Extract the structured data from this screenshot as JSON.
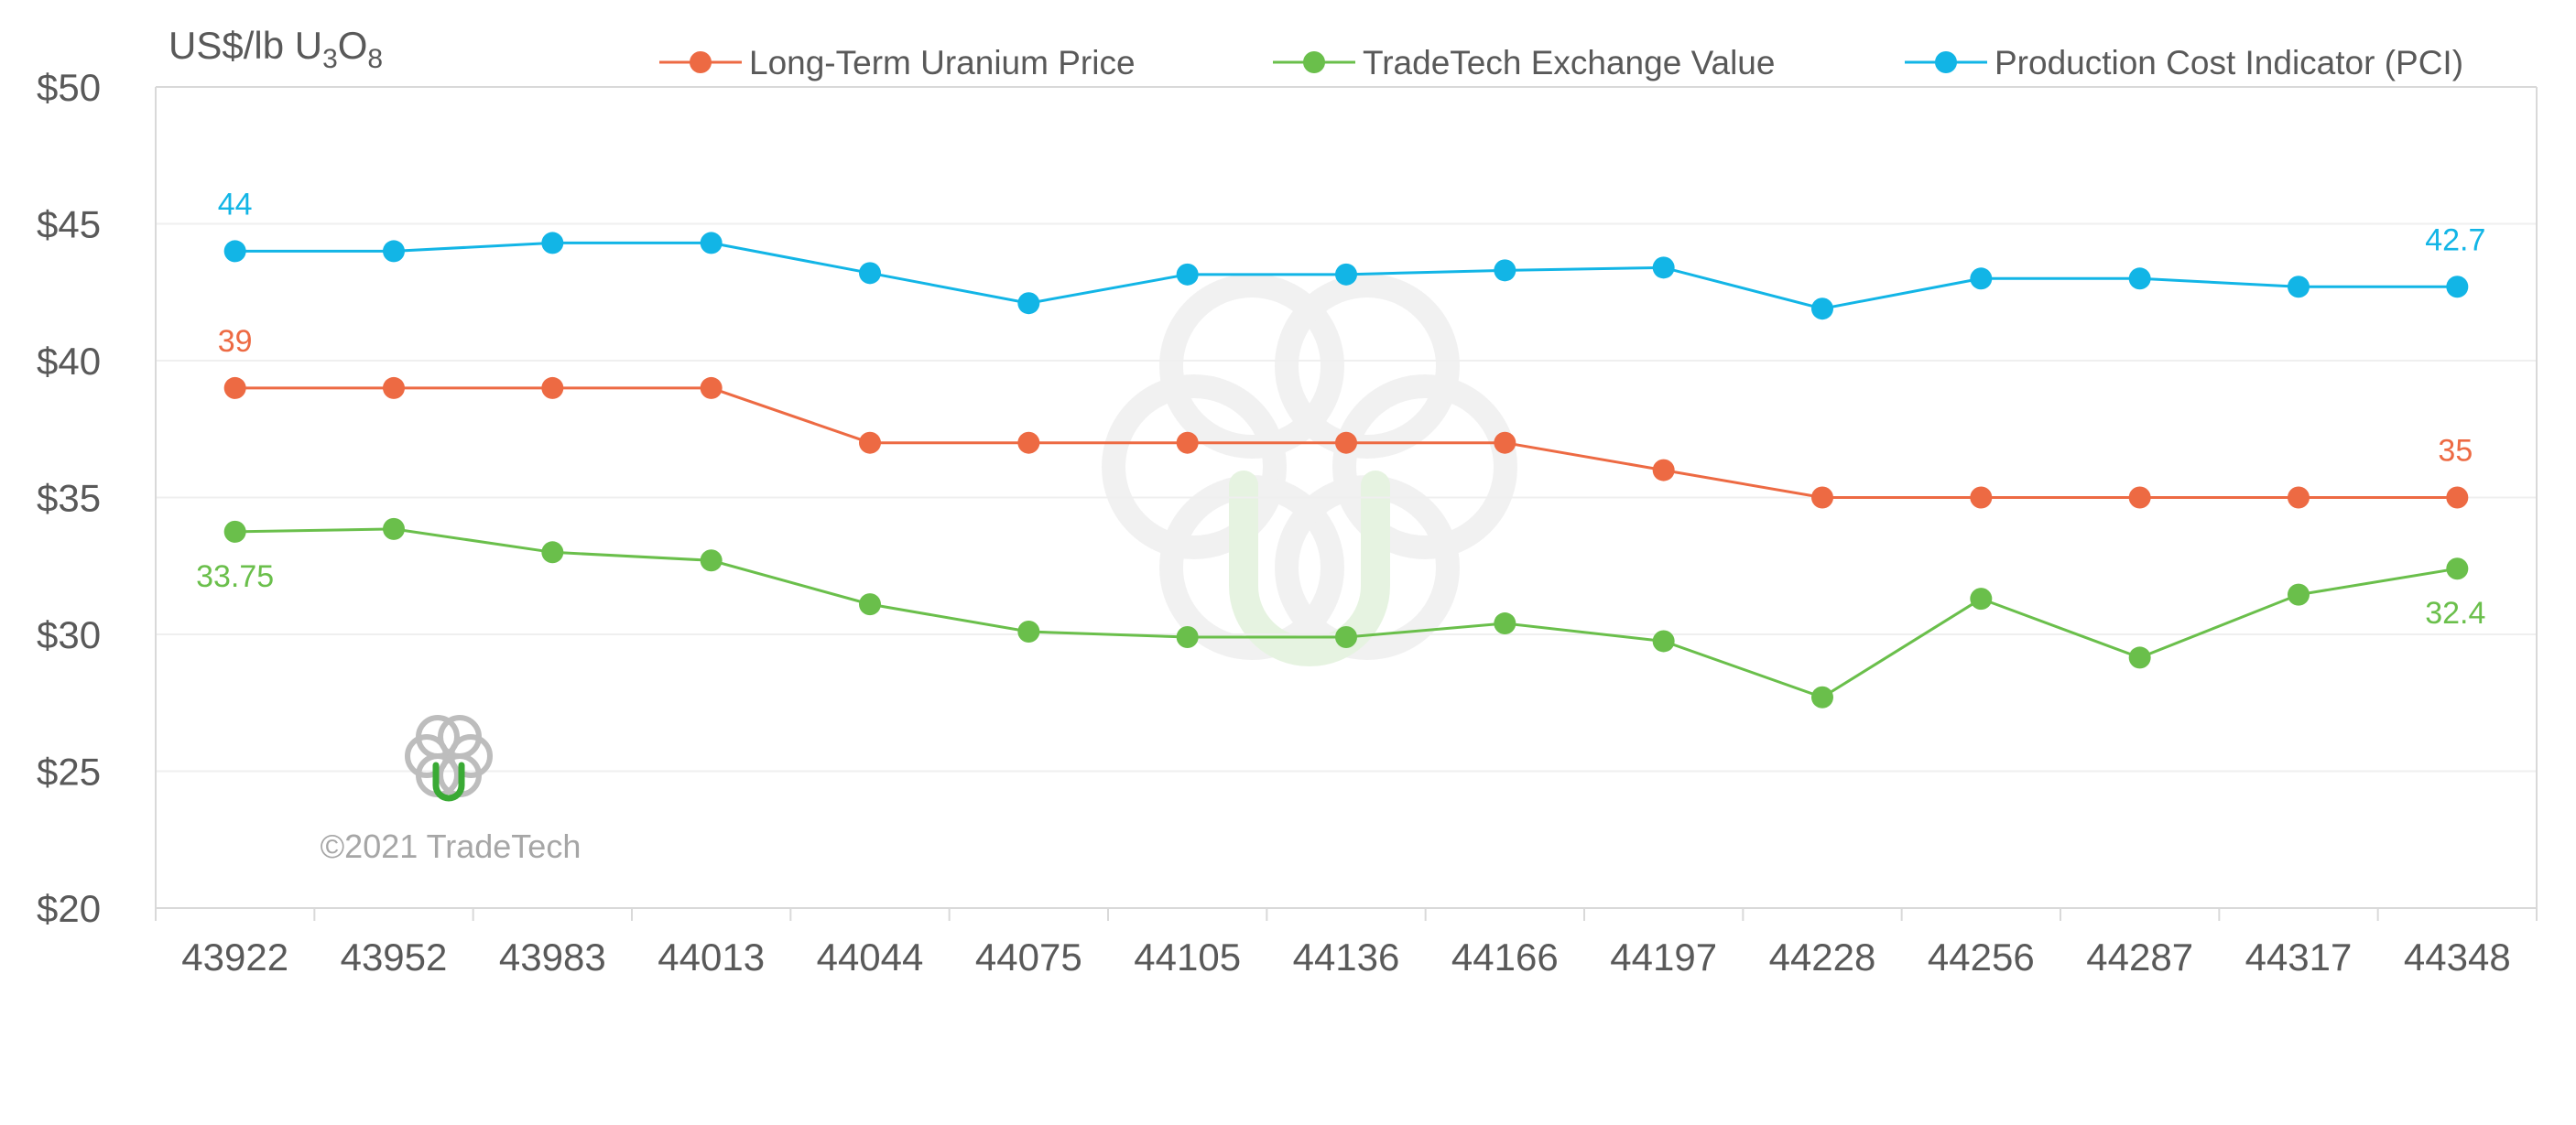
{
  "chart_data": {
    "type": "line",
    "unit_label": {
      "prefix": "US$/lb U",
      "sub1": "3",
      "mid": "O",
      "sub2": "8"
    },
    "xlabel": "",
    "ylabel": "",
    "categories": [
      "43922",
      "43952",
      "43983",
      "44013",
      "44044",
      "44075",
      "44105",
      "44136",
      "44166",
      "44197",
      "44228",
      "44256",
      "44287",
      "44317",
      "44348"
    ],
    "y_tick_labels": [
      "$20",
      "$25",
      "$30",
      "$35",
      "$40",
      "$45",
      "$50"
    ],
    "ylim": [
      20,
      50
    ],
    "grid": true,
    "legend_position": "top",
    "series": [
      {
        "name": "Long-Term Uranium Price",
        "color": "#ed6a43",
        "values": [
          39,
          39,
          39,
          39,
          37,
          37,
          37,
          37,
          37,
          36,
          35,
          35,
          35,
          35,
          35
        ],
        "labels": [
          {
            "index": 0,
            "text": "39",
            "placement": "above"
          },
          {
            "index": 14,
            "text": "35",
            "placement": "above"
          }
        ]
      },
      {
        "name": "TradeTech Exchange Value",
        "color": "#6abf4b",
        "values": [
          33.75,
          33.85,
          33.0,
          32.7,
          31.1,
          30.1,
          29.9,
          29.9,
          30.4,
          29.75,
          27.7,
          31.3,
          29.15,
          31.45,
          32.4
        ],
        "labels": [
          {
            "index": 0,
            "text": "33.75",
            "placement": "below"
          },
          {
            "index": 14,
            "text": "32.4",
            "placement": "below"
          }
        ]
      },
      {
        "name": "Production Cost Indicator (PCI)",
        "color": "#12b5e6",
        "values": [
          44,
          44,
          44.3,
          44.3,
          43.2,
          42.1,
          43.15,
          43.15,
          43.3,
          43.4,
          41.9,
          43.0,
          43.0,
          42.7,
          42.7
        ],
        "labels": [
          {
            "index": 0,
            "text": "44",
            "placement": "above"
          },
          {
            "index": 14,
            "text": "42.7",
            "placement": "above"
          }
        ]
      }
    ]
  },
  "watermark": {
    "copyright": "©2021 TradeTech",
    "logo_icon": "tradetech-logo-icon",
    "logo_colors": {
      "rings": "#b8b8b8",
      "u": "#3aaa35"
    }
  },
  "colors": {
    "axis": "#d9d9d9",
    "grid": "#efefef",
    "text": "#595959"
  }
}
